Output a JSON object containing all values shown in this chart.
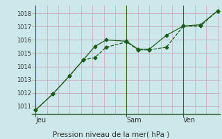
{
  "xlabel": "Pression niveau de la mer( hPa )",
  "bg_color": "#cce8ea",
  "plot_bg_color": "#cce8ea",
  "line_color": "#1a5c1a",
  "grid_color_h": "#c8a8b8",
  "grid_color_v": "#c8a8b8",
  "spine_color": "#336633",
  "ylim": [
    1010.4,
    1018.6
  ],
  "yticks": [
    1011,
    1012,
    1013,
    1014,
    1015,
    1016,
    1017,
    1018
  ],
  "xlim": [
    0.0,
    16.5
  ],
  "day_labels": [
    "Jeu",
    "Sam",
    "Ven"
  ],
  "day_positions": [
    0.3,
    8.3,
    13.3
  ],
  "vline_x": [
    0.3,
    8.3,
    13.3
  ],
  "line1_x": [
    0.3,
    1.8,
    3.3,
    4.5,
    5.5,
    6.5,
    8.3,
    9.3,
    10.3,
    11.8,
    13.3,
    14.8,
    16.3
  ],
  "line1_y": [
    1010.7,
    1011.9,
    1013.3,
    1014.5,
    1014.65,
    1015.45,
    1015.85,
    1015.25,
    1015.25,
    1015.45,
    1017.05,
    1017.05,
    1018.2
  ],
  "line2_x": [
    0.3,
    1.8,
    3.3,
    4.5,
    5.5,
    6.5,
    8.3,
    9.3,
    10.3,
    11.8,
    13.3,
    14.8,
    16.3
  ],
  "line2_y": [
    1010.7,
    1011.9,
    1013.3,
    1014.5,
    1015.5,
    1016.0,
    1015.9,
    1015.3,
    1015.3,
    1016.35,
    1017.05,
    1017.15,
    1018.2
  ],
  "marker_size": 2.5,
  "line_width": 0.9,
  "xlabel_fontsize": 7.5,
  "ytick_fontsize": 6,
  "xtick_fontsize": 7
}
